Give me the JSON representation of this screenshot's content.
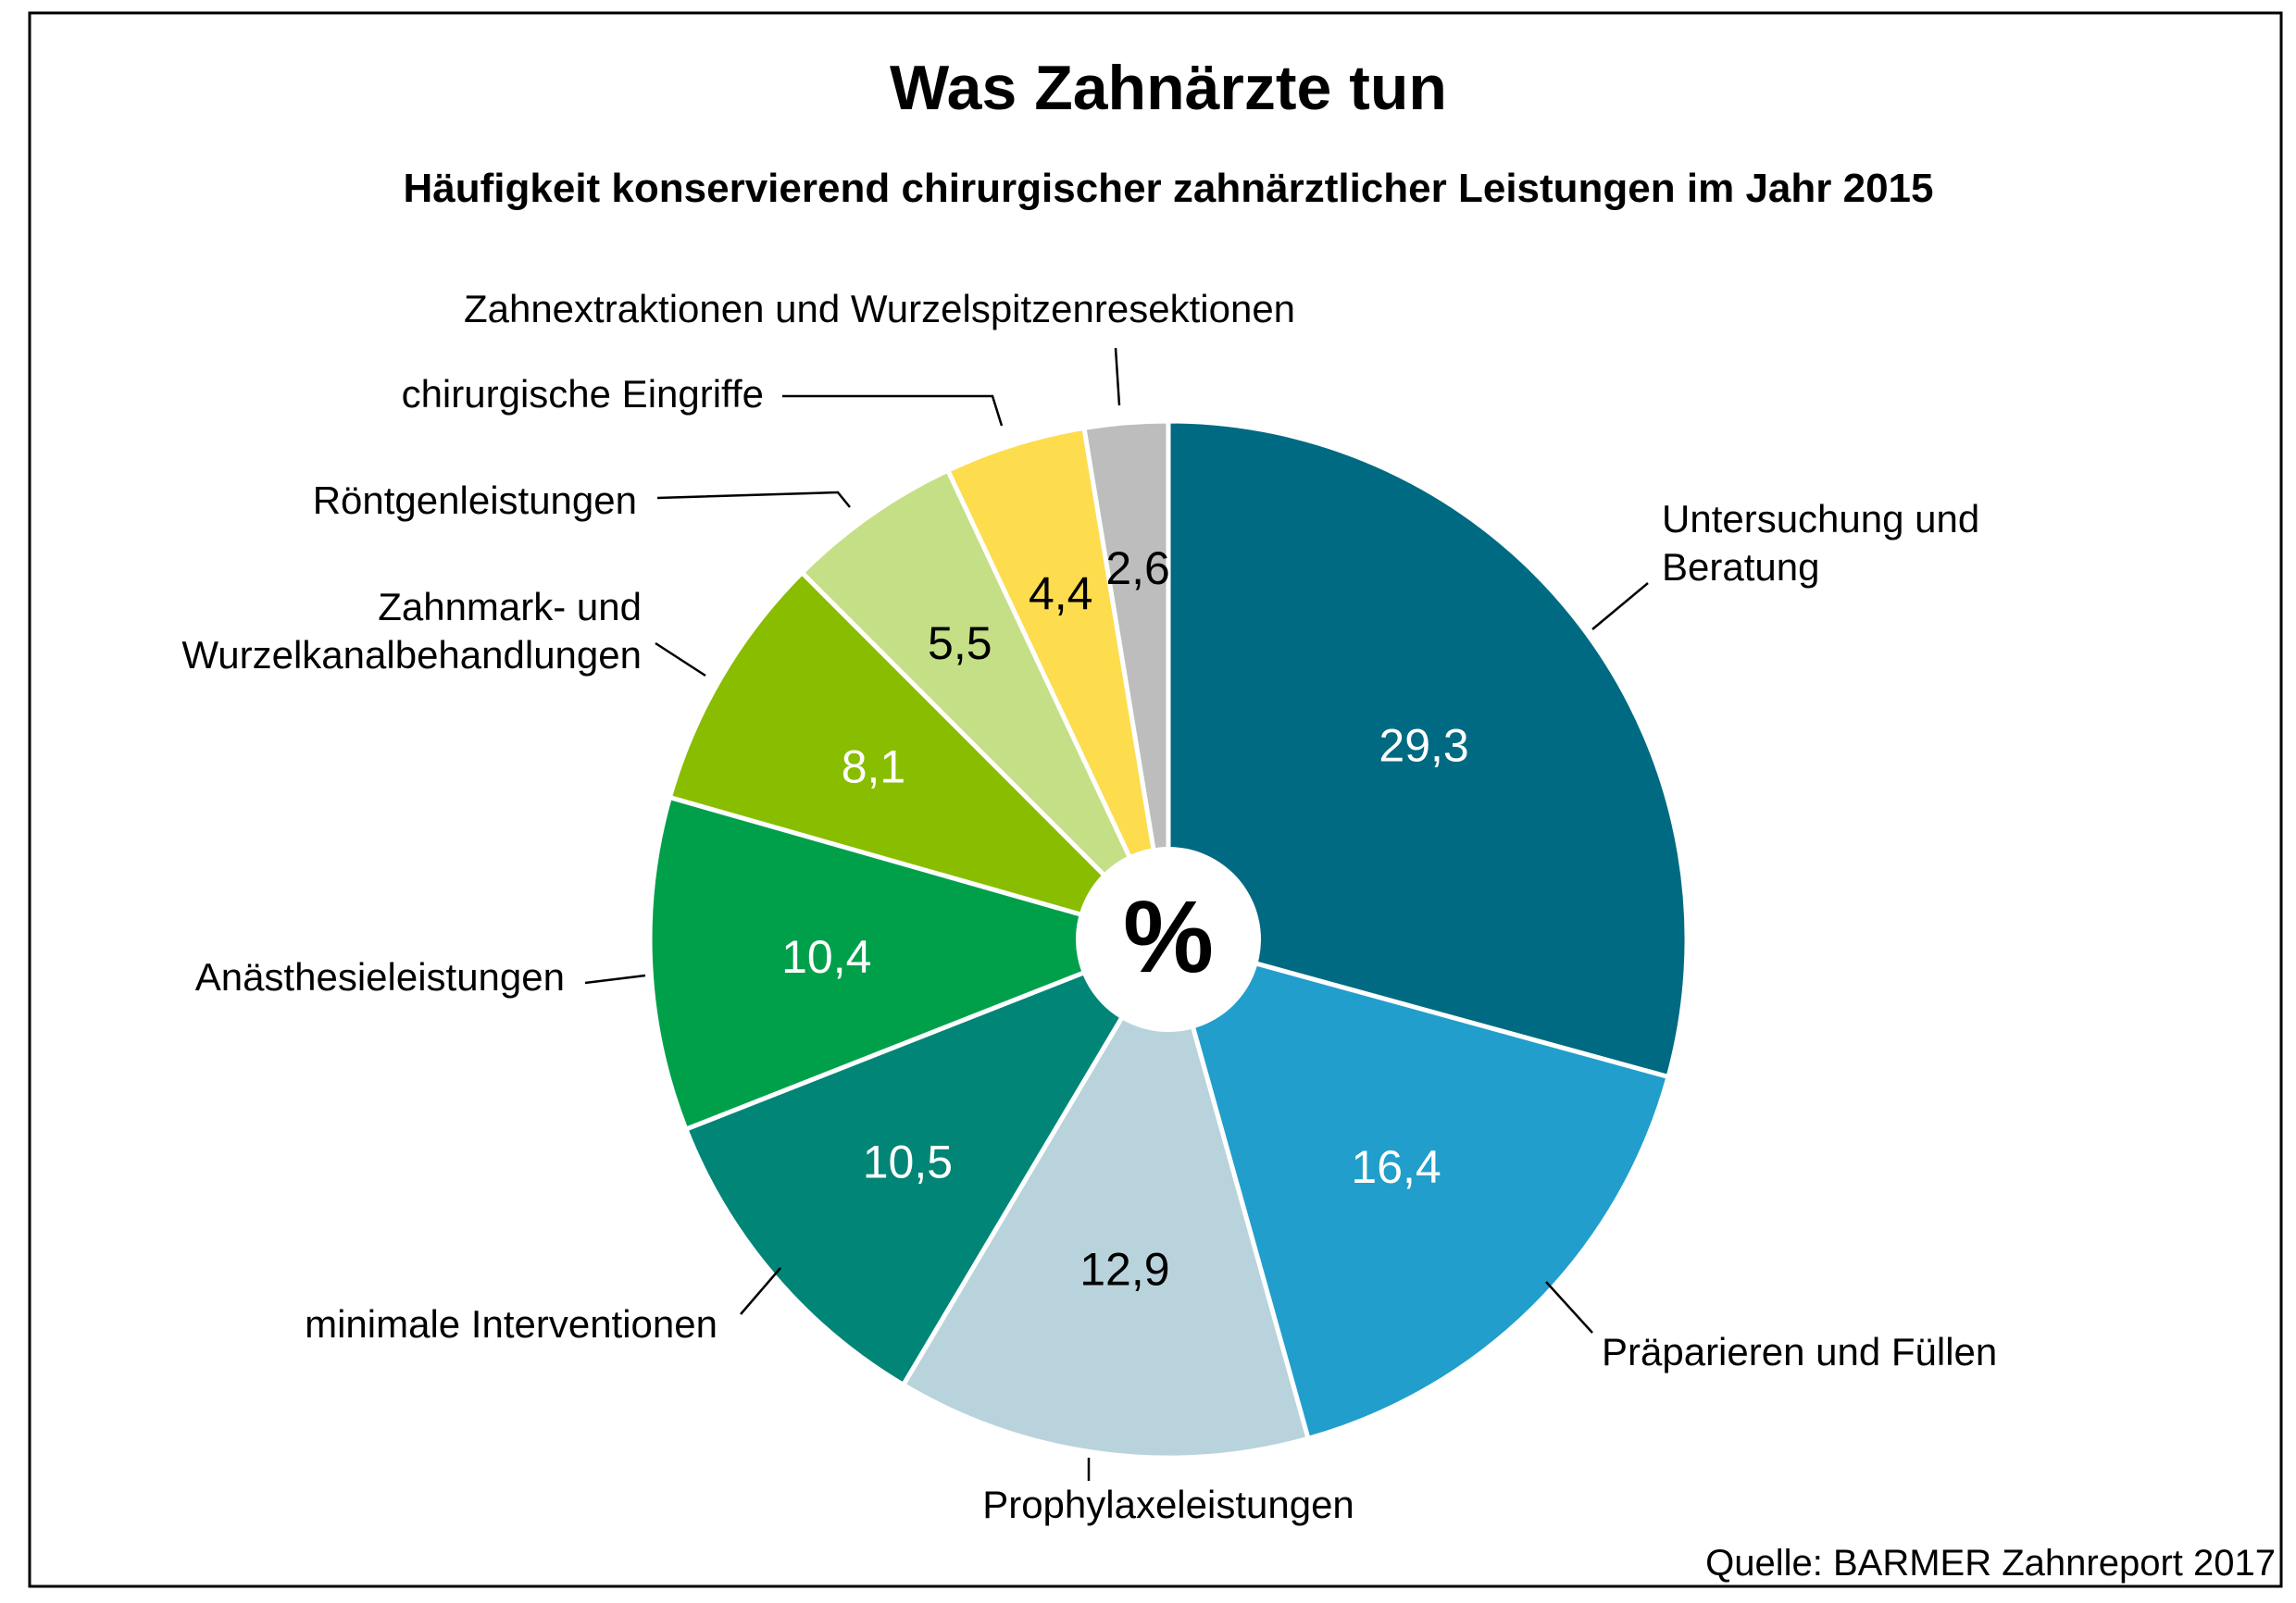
{
  "chart_data": {
    "type": "pie",
    "title": "Was Zahnärzte tun",
    "subtitle": "Häufigkeit konservierend chirurgischer zahnärztlicher Leistungen im Jahr 2015",
    "center_label": "%",
    "source": "Quelle: BARMER Zahnreport 2017",
    "slices": [
      {
        "label": [
          "Untersuchung und",
          "Beratung"
        ],
        "value": 29.3,
        "value_text": "29,3",
        "color": "#006a82",
        "text_color": "#ffffff"
      },
      {
        "label": [
          "Präparieren und Füllen"
        ],
        "value": 16.4,
        "value_text": "16,4",
        "color": "#219ecc",
        "text_color": "#ffffff"
      },
      {
        "label": [
          "Prophylaxeleistungen"
        ],
        "value": 12.9,
        "value_text": "12,9",
        "color": "#b9d3dc",
        "text_color": "#000000"
      },
      {
        "label": [
          "minimale Interventionen"
        ],
        "value": 10.5,
        "value_text": "10,5",
        "color": "#008577",
        "text_color": "#ffffff"
      },
      {
        "label": [
          "Anästhesieleistungen"
        ],
        "value": 10.4,
        "value_text": "10,4",
        "color": "#00a04b",
        "text_color": "#ffffff"
      },
      {
        "label": [
          "Zahnmark- und",
          "Wurzelkanalbehandlungen"
        ],
        "value": 8.1,
        "value_text": "8,1",
        "color": "#89bd00",
        "text_color": "#ffffff"
      },
      {
        "label": [
          "Röntgenleistungen"
        ],
        "value": 5.5,
        "value_text": "5,5",
        "color": "#c5df86",
        "text_color": "#000000"
      },
      {
        "label": [
          "chirurgische Eingriffe"
        ],
        "value": 4.4,
        "value_text": "4,4",
        "color": "#fddc4e",
        "text_color": "#000000"
      },
      {
        "label": [
          "Zahnextraktionen und Wurzelspitzenresektionen"
        ],
        "value": 2.6,
        "value_text": "2,6",
        "color": "#bdbdbd",
        "text_color": "#000000"
      }
    ]
  }
}
